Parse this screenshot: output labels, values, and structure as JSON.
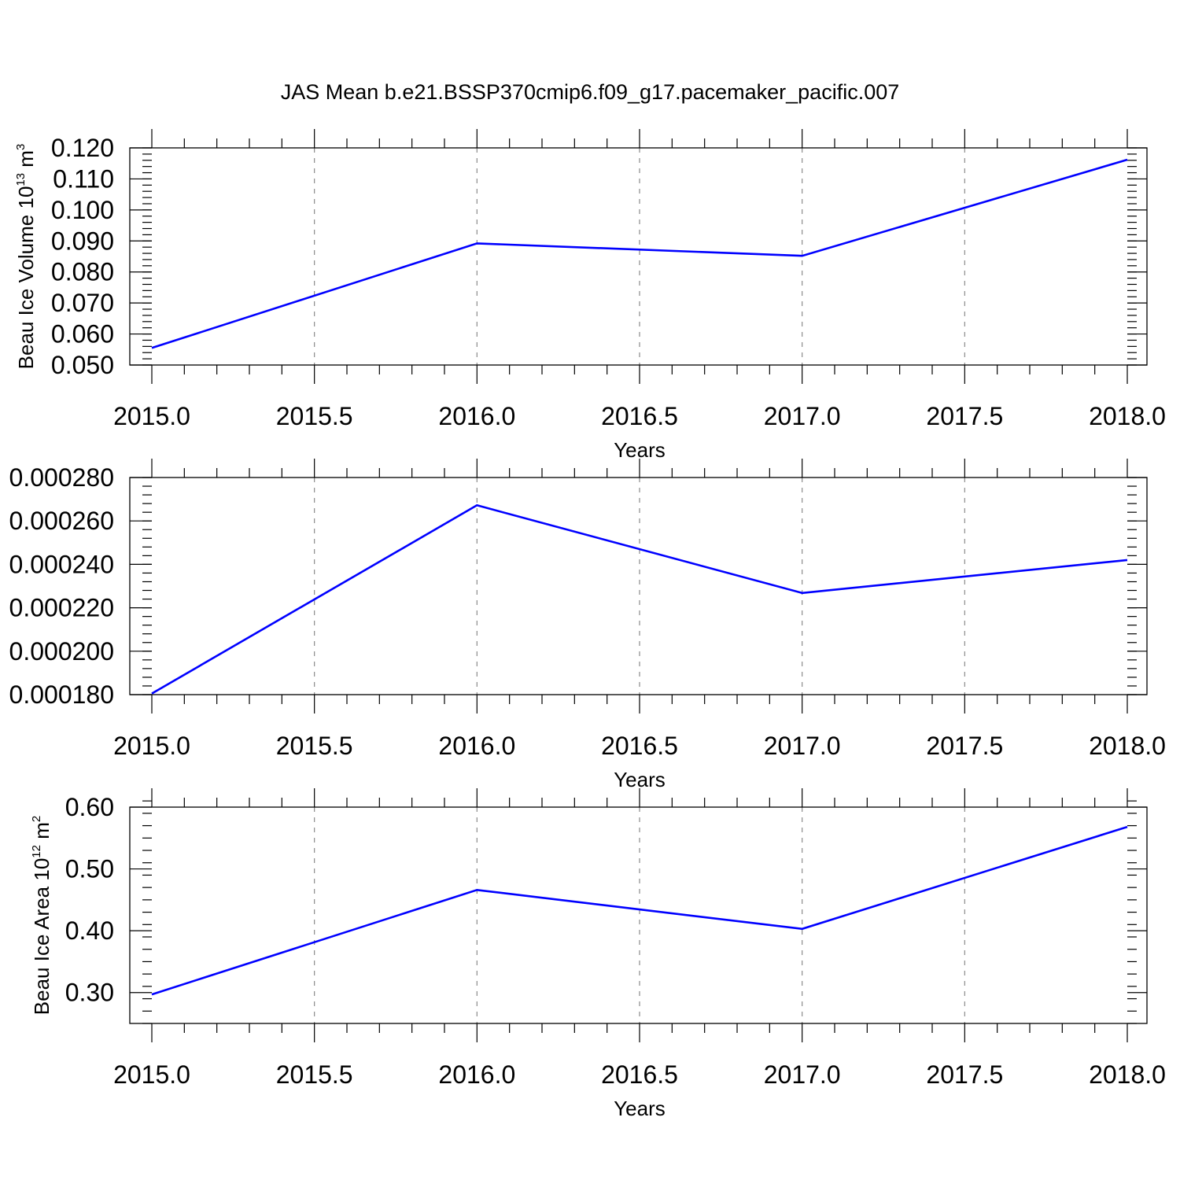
{
  "title": "JAS Mean b.e21.BSSP370cmip6.f09_g17.pacemaker_pacific.007",
  "chart_data": [
    {
      "type": "line",
      "xlabel": "Years",
      "ylabel": "Beau Ice Volume 10",
      "ylabel_exp": "13",
      "ylabel_unit": " m",
      "ylabel_unit_exp": "3",
      "xlim": [
        2015.0,
        2018.0
      ],
      "ylim": [
        0.05,
        0.12
      ],
      "xticks": [
        2015.0,
        2015.5,
        2016.0,
        2016.5,
        2017.0,
        2017.5,
        2018.0
      ],
      "xtick_labels": [
        "2015.0",
        "2015.5",
        "2016.0",
        "2016.5",
        "2017.0",
        "2017.5",
        "2018.0"
      ],
      "yticks": [
        0.05,
        0.06,
        0.07,
        0.08,
        0.09,
        0.1,
        0.11,
        0.12
      ],
      "ytick_labels": [
        "0.050",
        "0.060",
        "0.070",
        "0.080",
        "0.090",
        "0.100",
        "0.110",
        "0.120"
      ],
      "yminor": 0.002,
      "grid": "x-dashed",
      "series": [
        {
          "x": [
            2015,
            2016,
            2017,
            2018
          ],
          "values": [
            0.0555,
            0.0892,
            0.0852,
            0.1162
          ],
          "color": "#0000ff"
        }
      ]
    },
    {
      "type": "line",
      "xlabel": "Years",
      "ylabel": "",
      "xlim": [
        2015.0,
        2018.0
      ],
      "ylim": [
        0.00018,
        0.00028
      ],
      "xticks": [
        2015.0,
        2015.5,
        2016.0,
        2016.5,
        2017.0,
        2017.5,
        2018.0
      ],
      "xtick_labels": [
        "2015.0",
        "2015.5",
        "2016.0",
        "2016.5",
        "2017.0",
        "2017.5",
        "2018.0"
      ],
      "yticks": [
        0.00018,
        0.0002,
        0.00022,
        0.00024,
        0.00026,
        0.00028
      ],
      "ytick_labels": [
        "0.000180",
        "0.000200",
        "0.000220",
        "0.000240",
        "0.000260",
        "0.000280"
      ],
      "yminor": 4e-06,
      "grid": "x-dashed",
      "series": [
        {
          "x": [
            2015,
            2016,
            2017,
            2018
          ],
          "values": [
            0.0001805,
            0.0002672,
            0.0002268,
            0.000242
          ],
          "color": "#0000ff"
        }
      ]
    },
    {
      "type": "line",
      "xlabel": "Years",
      "ylabel": "Beau Ice Area 10",
      "ylabel_exp": "12",
      "ylabel_unit": " m",
      "ylabel_unit_exp": "2",
      "xlim": [
        2015.0,
        2018.0
      ],
      "ylim": [
        0.25,
        0.6
      ],
      "xticks": [
        2015.0,
        2015.5,
        2016.0,
        2016.5,
        2017.0,
        2017.5,
        2018.0
      ],
      "xtick_labels": [
        "2015.0",
        "2015.5",
        "2016.0",
        "2016.5",
        "2017.0",
        "2017.5",
        "2018.0"
      ],
      "yticks": [
        0.3,
        0.4,
        0.5,
        0.6
      ],
      "ytick_labels": [
        "0.30",
        "0.40",
        "0.50",
        "0.60"
      ],
      "yminor": 0.02,
      "grid": "x-dashed",
      "series": [
        {
          "x": [
            2015,
            2016,
            2017,
            2018
          ],
          "values": [
            0.297,
            0.466,
            0.403,
            0.568
          ],
          "color": "#0000ff"
        }
      ]
    }
  ]
}
